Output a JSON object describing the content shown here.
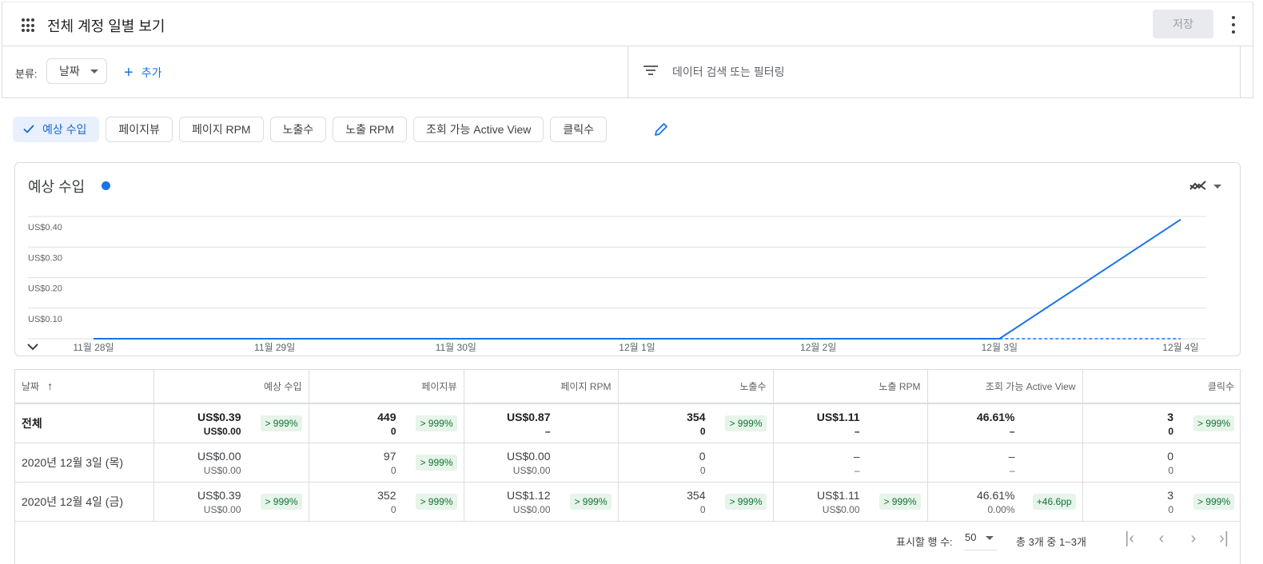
{
  "header": {
    "title": "전체 계정 일별 보기",
    "save_label": "저장"
  },
  "filters": {
    "breakdown_label": "분류:",
    "breakdown_value": "날짜",
    "add_label": "추가",
    "search_placeholder": "데이터 검색 또는 필터링"
  },
  "metrics": [
    {
      "label": "예상 수입",
      "selected": true
    },
    {
      "label": "페이지뷰",
      "selected": false
    },
    {
      "label": "페이지 RPM",
      "selected": false
    },
    {
      "label": "노출수",
      "selected": false
    },
    {
      "label": "노출 RPM",
      "selected": false
    },
    {
      "label": "조회 가능 Active View",
      "selected": false
    },
    {
      "label": "클릭수",
      "selected": false
    }
  ],
  "colors": {
    "accent": "#1a73e8",
    "badge_bg": "#e6f4ea",
    "badge_text": "#137333"
  },
  "chart_data": {
    "type": "line",
    "title": "예상 수입",
    "categories": [
      "11월 28일",
      "11월 29일",
      "11월 30일",
      "12월 1일",
      "12월 2일",
      "12월 3일",
      "12월 4일"
    ],
    "yticks": [
      "US$0.10",
      "US$0.20",
      "US$0.30",
      "US$0.40"
    ],
    "ylim": [
      0,
      0.4
    ],
    "series": [
      {
        "values": [
          0,
          0,
          0,
          0,
          0,
          0,
          0.39
        ],
        "style": "solid"
      },
      {
        "values": [
          null,
          null,
          null,
          null,
          null,
          0,
          0
        ],
        "style": "dashed"
      }
    ]
  },
  "table": {
    "headers": [
      "날짜",
      "예상 수입",
      "페이지뷰",
      "페이지 RPM",
      "노출수",
      "노출 RPM",
      "조회 가능 Active View",
      "클릭수"
    ],
    "rows": [
      {
        "date": "전체",
        "bold": true,
        "cells": [
          {
            "v1": "US$0.39",
            "v2": "US$0.00",
            "badge": "> 999%"
          },
          {
            "v1": "449",
            "v2": "0",
            "badge": "> 999%"
          },
          {
            "v1": "US$0.87",
            "v2": "–",
            "badge": ""
          },
          {
            "v1": "354",
            "v2": "0",
            "badge": "> 999%"
          },
          {
            "v1": "US$1.11",
            "v2": "–",
            "badge": ""
          },
          {
            "v1": "46.61%",
            "v2": "–",
            "badge": ""
          },
          {
            "v1": "3",
            "v2": "0",
            "badge": "> 999%"
          }
        ]
      },
      {
        "date": "2020년 12월 3일 (목)",
        "bold": false,
        "cells": [
          {
            "v1": "US$0.00",
            "v2": "US$0.00",
            "badge": ""
          },
          {
            "v1": "97",
            "v2": "0",
            "badge": "> 999%"
          },
          {
            "v1": "US$0.00",
            "v2": "US$0.00",
            "badge": ""
          },
          {
            "v1": "0",
            "v2": "0",
            "badge": ""
          },
          {
            "v1": "–",
            "v2": "–",
            "badge": ""
          },
          {
            "v1": "–",
            "v2": "–",
            "badge": ""
          },
          {
            "v1": "0",
            "v2": "0",
            "badge": ""
          }
        ]
      },
      {
        "date": "2020년 12월 4일 (금)",
        "bold": false,
        "cells": [
          {
            "v1": "US$0.39",
            "v2": "US$0.00",
            "badge": "> 999%"
          },
          {
            "v1": "352",
            "v2": "0",
            "badge": "> 999%"
          },
          {
            "v1": "US$1.12",
            "v2": "US$0.00",
            "badge": "> 999%"
          },
          {
            "v1": "354",
            "v2": "0",
            "badge": "> 999%"
          },
          {
            "v1": "US$1.11",
            "v2": "US$0.00",
            "badge": "> 999%"
          },
          {
            "v1": "46.61%",
            "v2": "0.00%",
            "badge": "+46.6pp"
          },
          {
            "v1": "3",
            "v2": "0",
            "badge": "> 999%"
          }
        ]
      }
    ]
  },
  "pagination": {
    "rows_label": "표시할 행 수:",
    "rows_value": "50",
    "range": "총 3개 중 1~3개"
  }
}
